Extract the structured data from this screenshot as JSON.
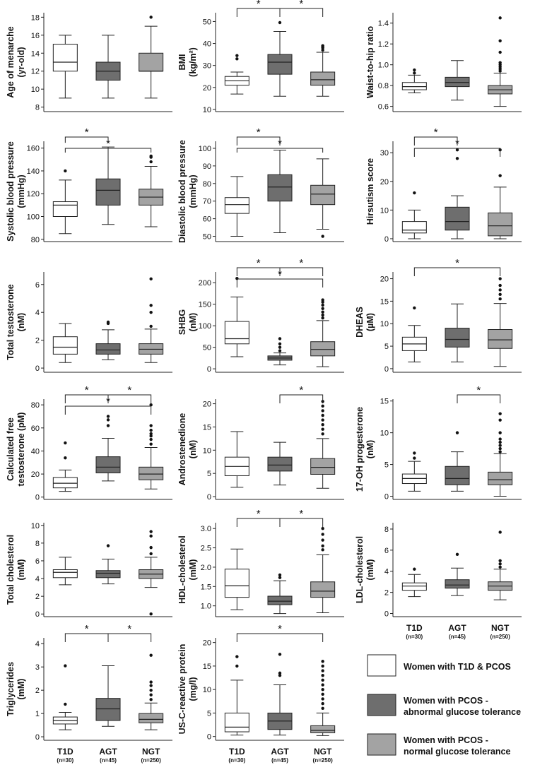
{
  "chart_data": [
    {
      "type": "boxplot",
      "ylabel": [
        "Age of menarche",
        "(yr-old)"
      ],
      "ylim": [
        7.5,
        18.5
      ],
      "yticks": [
        8,
        10,
        12,
        14,
        16,
        18
      ],
      "boxes": [
        [
          9,
          12,
          13,
          15,
          16
        ],
        [
          9,
          11,
          12,
          13,
          16
        ],
        [
          9,
          12,
          12,
          14,
          17
        ]
      ],
      "outliers": [
        [],
        [],
        [
          18
        ]
      ],
      "sig": []
    },
    {
      "type": "boxplot",
      "ylabel": [
        "BMI",
        "(kg/m²)"
      ],
      "ylim": [
        9,
        54
      ],
      "yticks": [
        10,
        20,
        30,
        40,
        50
      ],
      "boxes": [
        [
          17,
          21,
          23,
          25,
          27
        ],
        [
          16,
          26,
          31.5,
          35,
          45.5
        ],
        [
          16,
          21,
          23.5,
          27,
          36
        ]
      ],
      "outliers": [
        [
          33,
          34.5
        ],
        [
          49.5
        ],
        [
          37,
          38,
          38.5,
          39
        ]
      ],
      "sig": [
        [
          0,
          1,
          0
        ],
        [
          1,
          2,
          0
        ]
      ]
    },
    {
      "type": "boxplot",
      "ylabel": [
        "Waist-to-hip ratio"
      ],
      "ylim": [
        0.55,
        1.5
      ],
      "yticks": [
        0.6,
        0.8,
        1.0,
        1.2,
        1.4
      ],
      "ticklabels": [
        "0.6",
        "0.8",
        "1.0",
        "1.2",
        "1.4"
      ],
      "boxes": [
        [
          0.73,
          0.76,
          0.79,
          0.83,
          0.9
        ],
        [
          0.66,
          0.79,
          0.83,
          0.88,
          1.04
        ],
        [
          0.6,
          0.72,
          0.76,
          0.8,
          0.92
        ]
      ],
      "outliers": [
        [
          0.92,
          0.95
        ],
        [],
        [
          0.94,
          0.96,
          0.98,
          1.0,
          1.02,
          1.12,
          1.23,
          1.45
        ]
      ],
      "sig": []
    },
    {
      "type": "boxplot",
      "ylabel": [
        "Systolic blood pressure",
        "(mmHg)"
      ],
      "ylim": [
        78,
        166
      ],
      "yticks": [
        80,
        100,
        120,
        140,
        160
      ],
      "boxes": [
        [
          85,
          100,
          110,
          113,
          132
        ],
        [
          93,
          110,
          123,
          133,
          161
        ],
        [
          91,
          110,
          117,
          124,
          144
        ]
      ],
      "outliers": [
        [
          140
        ],
        [],
        [
          148,
          152,
          153
        ]
      ],
      "sig": [
        [
          0,
          1,
          0
        ],
        [
          0,
          2,
          1
        ]
      ]
    },
    {
      "type": "boxplot",
      "ylabel": [
        "Diastolic blood pressure",
        "(mmHg)"
      ],
      "ylim": [
        47,
        104
      ],
      "yticks": [
        50,
        60,
        70,
        80,
        90,
        100
      ],
      "boxes": [
        [
          50,
          63,
          68,
          72,
          84
        ],
        [
          52,
          70,
          78,
          85,
          99
        ],
        [
          54,
          68,
          74,
          79,
          94
        ]
      ],
      "outliers": [
        [],
        [],
        [
          50
        ]
      ],
      "sig": [
        [
          0,
          1,
          0
        ],
        [
          0,
          2,
          1
        ]
      ]
    },
    {
      "type": "boxplot",
      "ylabel": [
        "Hirsutism score"
      ],
      "ylim": [
        -1,
        34
      ],
      "yticks": [
        0,
        10,
        20,
        30
      ],
      "boxes": [
        [
          0,
          2,
          3,
          6,
          10
        ],
        [
          0,
          3,
          6,
          11,
          15
        ],
        [
          0,
          1,
          4.5,
          9,
          18
        ]
      ],
      "outliers": [
        [
          16
        ],
        [
          28,
          31
        ],
        [
          22,
          31
        ]
      ],
      "sig": [
        [
          0,
          1,
          0
        ],
        [
          0,
          2,
          1
        ]
      ]
    },
    {
      "type": "boxplot",
      "ylabel": [
        "Total testosterone",
        "(nM)"
      ],
      "ylim": [
        -0.3,
        6.9
      ],
      "yticks": [
        0,
        2,
        4,
        6
      ],
      "boxes": [
        [
          0.4,
          1.0,
          1.5,
          2.25,
          3.2
        ],
        [
          0.6,
          1.0,
          1.3,
          1.75,
          2.75
        ],
        [
          0.4,
          1.0,
          1.35,
          1.75,
          2.8
        ]
      ],
      "outliers": [
        [],
        [
          3.2,
          3.3
        ],
        [
          3.0,
          4.0,
          4.5,
          6.4
        ]
      ],
      "sig": []
    },
    {
      "type": "boxplot",
      "ylabel": [
        "SHBG",
        "(nM)"
      ],
      "ylim": [
        -8,
        225
      ],
      "yticks": [
        0,
        50,
        100,
        150,
        200
      ],
      "boxes": [
        [
          28,
          58,
          70,
          110,
          167
        ],
        [
          9,
          20,
          25,
          30,
          37
        ],
        [
          5,
          30,
          45,
          63,
          112
        ]
      ],
      "outliers": [
        [
          210
        ],
        [
          42,
          50,
          58,
          70
        ],
        [
          118,
          125,
          132,
          140,
          148,
          155,
          160
        ]
      ],
      "sig": [
        [
          0,
          1,
          0
        ],
        [
          1,
          2,
          0
        ],
        [
          0,
          2,
          1
        ]
      ]
    },
    {
      "type": "boxplot",
      "ylabel": [
        "DHEAS",
        "(µM)"
      ],
      "ylim": [
        -0.8,
        21.5
      ],
      "yticks": [
        0,
        5,
        10,
        15,
        20
      ],
      "boxes": [
        [
          1.5,
          4,
          5.5,
          7,
          9.6
        ],
        [
          1.5,
          4.8,
          6.5,
          9,
          14.4
        ],
        [
          0.5,
          4.5,
          6.4,
          8.7,
          14.5
        ]
      ],
      "outliers": [
        [
          13.5
        ],
        [],
        [
          15.5,
          16.5,
          17.5,
          18.5,
          20
        ]
      ],
      "sig": [
        [
          0,
          2,
          0
        ]
      ]
    },
    {
      "type": "boxplot",
      "ylabel": [
        "Calculated free",
        "testosterone (pM)"
      ],
      "ylim": [
        -2,
        85
      ],
      "yticks": [
        0,
        20,
        40,
        60,
        80
      ],
      "boxes": [
        [
          5,
          8,
          12,
          17,
          23.5
        ],
        [
          14,
          21,
          26,
          35,
          51
        ],
        [
          7,
          15,
          20,
          26,
          43
        ]
      ],
      "outliers": [
        [
          34,
          47
        ],
        [
          62,
          67,
          70
        ],
        [
          46,
          50,
          53,
          55,
          58,
          62,
          80
        ]
      ],
      "sig": [
        [
          0,
          1,
          0
        ],
        [
          1,
          2,
          0
        ],
        [
          0,
          2,
          1
        ]
      ]
    },
    {
      "type": "boxplot",
      "ylabel": [
        "Androstenedione",
        "(nM)"
      ],
      "ylim": [
        -0.6,
        21
      ],
      "yticks": [
        0,
        5,
        10,
        15,
        20
      ],
      "boxes": [
        [
          2,
          4.5,
          6.5,
          8.5,
          14
        ],
        [
          2.5,
          5.5,
          6.8,
          8.5,
          11.7
        ],
        [
          1.8,
          4.8,
          6.3,
          8.2,
          12.5
        ]
      ],
      "outliers": [
        [],
        [],
        [
          13.5,
          14.5,
          15.5,
          16.5,
          17.5,
          18.5,
          19.5,
          20.5
        ]
      ],
      "sig": [
        [
          1,
          2,
          0
        ]
      ]
    },
    {
      "type": "boxplot",
      "ylabel": [
        "17-OH progesterone",
        "(nM)"
      ],
      "ylim": [
        -0.5,
        15.3
      ],
      "yticks": [
        0,
        5,
        10,
        15
      ],
      "boxes": [
        [
          0.8,
          2,
          2.8,
          3.5,
          5.5
        ],
        [
          0.8,
          1.8,
          2.8,
          4.7,
          7
        ],
        [
          0,
          1.8,
          2.6,
          3.8,
          6.7
        ]
      ],
      "outliers": [
        [
          6,
          6.8
        ],
        [
          10
        ],
        [
          7,
          7.5,
          8,
          8.5,
          9,
          10,
          12,
          13
        ]
      ],
      "sig": [
        [
          1,
          2,
          0
        ]
      ]
    },
    {
      "type": "boxplot",
      "ylabel": [
        "Total cholesterol",
        "(mM)"
      ],
      "ylim": [
        -0.3,
        10.3
      ],
      "yticks": [
        0,
        2,
        4,
        6,
        8,
        10
      ],
      "boxes": [
        [
          3.3,
          4.1,
          4.7,
          5,
          6.4
        ],
        [
          3.4,
          4.1,
          4.6,
          4.9,
          6.2
        ],
        [
          3,
          4,
          4.5,
          5,
          6.4
        ]
      ],
      "outliers": [
        [],
        [
          7.7
        ],
        [
          0,
          6.8,
          7.5,
          8.8,
          9.3
        ]
      ],
      "sig": []
    },
    {
      "type": "boxplot",
      "ylabel": [
        "HDL-cholesterol",
        "(mM)"
      ],
      "ylim": [
        0.72,
        3.15
      ],
      "yticks": [
        1.0,
        1.5,
        2.0,
        2.5,
        3.0
      ],
      "ticklabels": [
        "1.0",
        "1.5",
        "2.0",
        "2.5",
        "3.0"
      ],
      "boxes": [
        [
          0.9,
          1.22,
          1.52,
          1.95,
          2.47
        ],
        [
          0.8,
          1.03,
          1.12,
          1.25,
          1.65
        ],
        [
          0.82,
          1.22,
          1.38,
          1.62,
          2.32
        ]
      ],
      "outliers": [
        [],
        [
          1.73,
          1.8
        ],
        [
          2.45,
          2.55,
          2.7,
          2.85,
          3.0
        ]
      ],
      "sig": [
        [
          0,
          1,
          0
        ],
        [
          1,
          2,
          0
        ]
      ]
    },
    {
      "type": "boxplot",
      "ylabel": [
        "LDL-cholesterol",
        "(mM)"
      ],
      "ylim": [
        -0.3,
        8.6
      ],
      "yticks": [
        0,
        2,
        4,
        6,
        8
      ],
      "boxes": [
        [
          1.6,
          2.2,
          2.6,
          2.9,
          3.7
        ],
        [
          1.7,
          2.4,
          2.7,
          3.2,
          4.3
        ],
        [
          1.3,
          2.2,
          2.6,
          3.0,
          4.2
        ]
      ],
      "outliers": [
        [
          4.2
        ],
        [
          5.6
        ],
        [
          4.4,
          4.7,
          5.0,
          7.7
        ]
      ],
      "sig": []
    },
    {
      "type": "boxplot",
      "ylabel": [
        "Triglycerides",
        "(mM)"
      ],
      "ylim": [
        -0.15,
        4.25
      ],
      "yticks": [
        0,
        1,
        2,
        3,
        4
      ],
      "boxes": [
        [
          0.3,
          0.55,
          0.7,
          0.85,
          1.05
        ],
        [
          0.45,
          0.7,
          1.2,
          1.65,
          3.05
        ],
        [
          0.3,
          0.6,
          0.75,
          1.0,
          1.45
        ]
      ],
      "outliers": [
        [
          1.4,
          3.05
        ],
        [],
        [
          1.6,
          1.8,
          2.0,
          2.2,
          2.35,
          3.5
        ]
      ],
      "sig": [
        [
          0,
          1,
          0
        ],
        [
          1,
          2,
          0
        ]
      ]
    },
    {
      "type": "boxplot",
      "ylabel": [
        "US-C-reactive protein",
        "(mg/l)"
      ],
      "ylim": [
        -0.8,
        21
      ],
      "yticks": [
        0,
        5,
        10,
        15,
        20
      ],
      "boxes": [
        [
          0.3,
          1,
          2,
          5,
          12
        ],
        [
          0.3,
          1.5,
          3.3,
          5,
          11
        ],
        [
          0.2,
          0.8,
          1.3,
          2.3,
          5
        ]
      ],
      "outliers": [
        [
          15,
          17
        ],
        [
          13,
          13.5,
          17.5
        ],
        [
          6,
          7,
          8,
          9,
          10,
          11,
          12,
          13,
          14,
          15,
          16
        ]
      ],
      "sig": [
        [
          0,
          2,
          0
        ]
      ]
    }
  ],
  "categories": [
    "T1D",
    "AGT",
    "NGT"
  ],
  "counts": [
    "(n=30)",
    "(n=45)",
    "(n=250)"
  ],
  "star_label": "*",
  "colors": {
    "t1d": "#ffffff",
    "agt": "#6e6e6e",
    "ngt": "#a3a3a3"
  },
  "legend": [
    {
      "lines": [
        "Women with T1D & PCOS"
      ],
      "color": "#ffffff"
    },
    {
      "lines": [
        "Women with PCOS -",
        "abnormal glucose tolerance"
      ],
      "color": "#6e6e6e"
    },
    {
      "lines": [
        "Women with PCOS -",
        "normal glucose tolerance"
      ],
      "color": "#a3a3a3"
    }
  ]
}
